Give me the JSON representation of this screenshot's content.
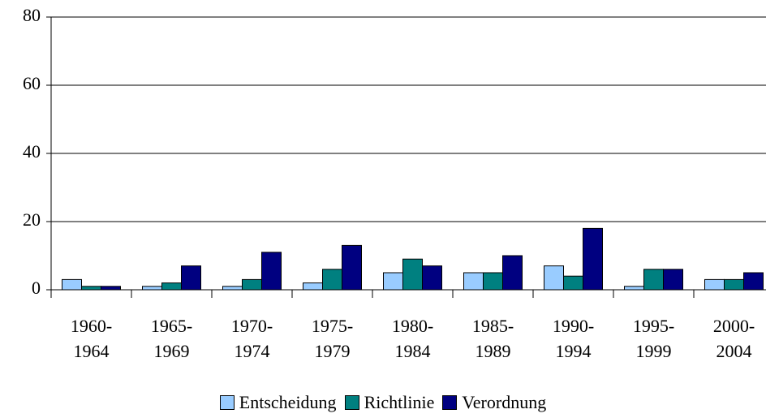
{
  "chart_data": {
    "type": "bar",
    "categories": [
      "1960-\n1964",
      "1965-\n1969",
      "1970-\n1974",
      "1975-\n1979",
      "1980-\n1984",
      "1985-\n1989",
      "1990-\n1994",
      "1995-\n1999",
      "2000-\n2004"
    ],
    "series": [
      {
        "name": "Entscheidung",
        "color": "#99ccff",
        "values": [
          3,
          1,
          1,
          2,
          5,
          5,
          7,
          1,
          3
        ]
      },
      {
        "name": "Richtlinie",
        "color": "#008080",
        "values": [
          1,
          2,
          3,
          6,
          9,
          5,
          4,
          6,
          3
        ]
      },
      {
        "name": "Verordnung",
        "color": "#000080",
        "values": [
          1,
          7,
          11,
          13,
          7,
          10,
          18,
          6,
          5
        ]
      }
    ],
    "ylim": [
      0,
      80
    ],
    "yticks": [
      0,
      20,
      40,
      60,
      80
    ],
    "grid": true,
    "legend": "bottom"
  }
}
